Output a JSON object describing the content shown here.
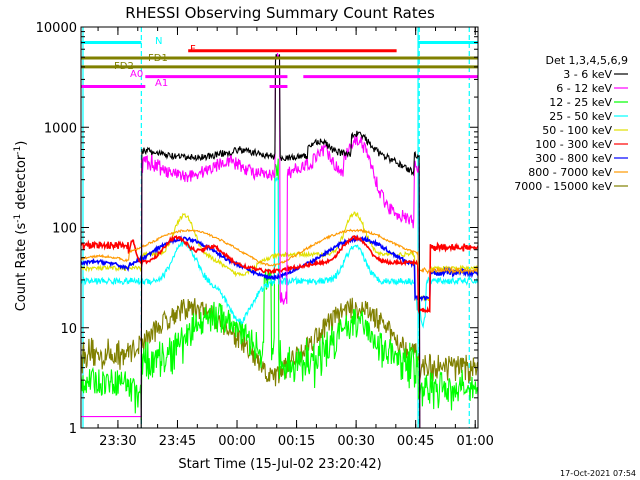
{
  "chart_data": {
    "type": "line",
    "title": "RHESSI Observing Summary Count Rates",
    "xlabel": "Start Time (15-Jul-02 23:20:42)",
    "ylabel_main": "Count Rate (s",
    "ylabel_sup": "-1",
    "ylabel_mid": " detector",
    "ylabel_end": ")",
    "yscale": "log",
    "ylim": [
      1,
      10000
    ],
    "y_ticks": [
      {
        "value": 1,
        "label": "1"
      },
      {
        "value": 10,
        "label": "10"
      },
      {
        "value": 100,
        "label": "100"
      },
      {
        "value": 1000,
        "label": "1000"
      },
      {
        "value": 10000,
        "label": "10000"
      }
    ],
    "xlim_minutes": [
      0,
      100
    ],
    "x_ticks": [
      {
        "minute": 9.3,
        "label": "23:30"
      },
      {
        "minute": 24.3,
        "label": "23:45"
      },
      {
        "minute": 39.3,
        "label": "00:00"
      },
      {
        "minute": 54.3,
        "label": "00:15"
      },
      {
        "minute": 69.3,
        "label": "00:30"
      },
      {
        "minute": 84.3,
        "label": "00:45"
      },
      {
        "minute": 99.3,
        "label": "01:00"
      }
    ],
    "legend_title": "Det 1,3,4,5,6,9",
    "legend_position": "right",
    "series": [
      {
        "name": "3 - 6 keV",
        "color": "#000000"
      },
      {
        "name": "6 - 12 keV",
        "color": "#ff00ff"
      },
      {
        "name": "12 - 25 keV",
        "color": "#00ff00"
      },
      {
        "name": "25 - 50 keV",
        "color": "#00ffff"
      },
      {
        "name": "50 - 100 keV",
        "color": "#e0e000"
      },
      {
        "name": "100 - 300 keV",
        "color": "#ff0000"
      },
      {
        "name": "300 - 800 keV",
        "color": "#0000ff"
      },
      {
        "name": "800 - 7000 keV",
        "color": "#ff9900"
      },
      {
        "name": "7000 - 15000 keV",
        "color": "#808000"
      }
    ],
    "flags": [
      {
        "label": "N",
        "color": "#00ffff",
        "segments": [
          [
            0,
            15.2
          ],
          [
            84.9,
            100
          ]
        ],
        "level": 7000
      },
      {
        "label": "F",
        "color": "#ff0000",
        "segments": [
          [
            27,
            79.5
          ]
        ],
        "level": 5800
      },
      {
        "label": "FD1",
        "color": "#808000",
        "segments": [
          [
            0,
            100
          ]
        ],
        "level": 4900
      },
      {
        "label": "FD2",
        "color": "#808000",
        "segments": [
          [
            0,
            100
          ]
        ],
        "level": 4000
      },
      {
        "label": "A0",
        "color": "#ff00ff",
        "segments": [
          [
            16.2,
            52
          ],
          [
            56,
            100
          ]
        ],
        "level": 3200
      },
      {
        "label": "A1",
        "color": "#ff00ff",
        "segments": [
          [
            0,
            16.2
          ],
          [
            47.5,
            52
          ]
        ],
        "level": 2550
      }
    ],
    "events": [
      {
        "name": "night start",
        "minute": 15.2,
        "color": "#00ffff",
        "style": "dashed"
      },
      {
        "name": "night end",
        "minute": 84.9,
        "color": "#00ffff",
        "style": "solid"
      },
      {
        "name": "night start 2",
        "minute": 85.2,
        "color": "#00ffff",
        "style": "dashed"
      },
      {
        "name": "end",
        "minute": 97.8,
        "color": "#00ffff",
        "style": "dashed"
      },
      {
        "name": "start",
        "minute": 0.5,
        "color": "#00ffff",
        "style": "solid"
      }
    ],
    "spike": {
      "minute": 49.6,
      "peak": 5000
    }
  },
  "footer": {
    "timestamp": "17-Oct-2021 07:54"
  }
}
